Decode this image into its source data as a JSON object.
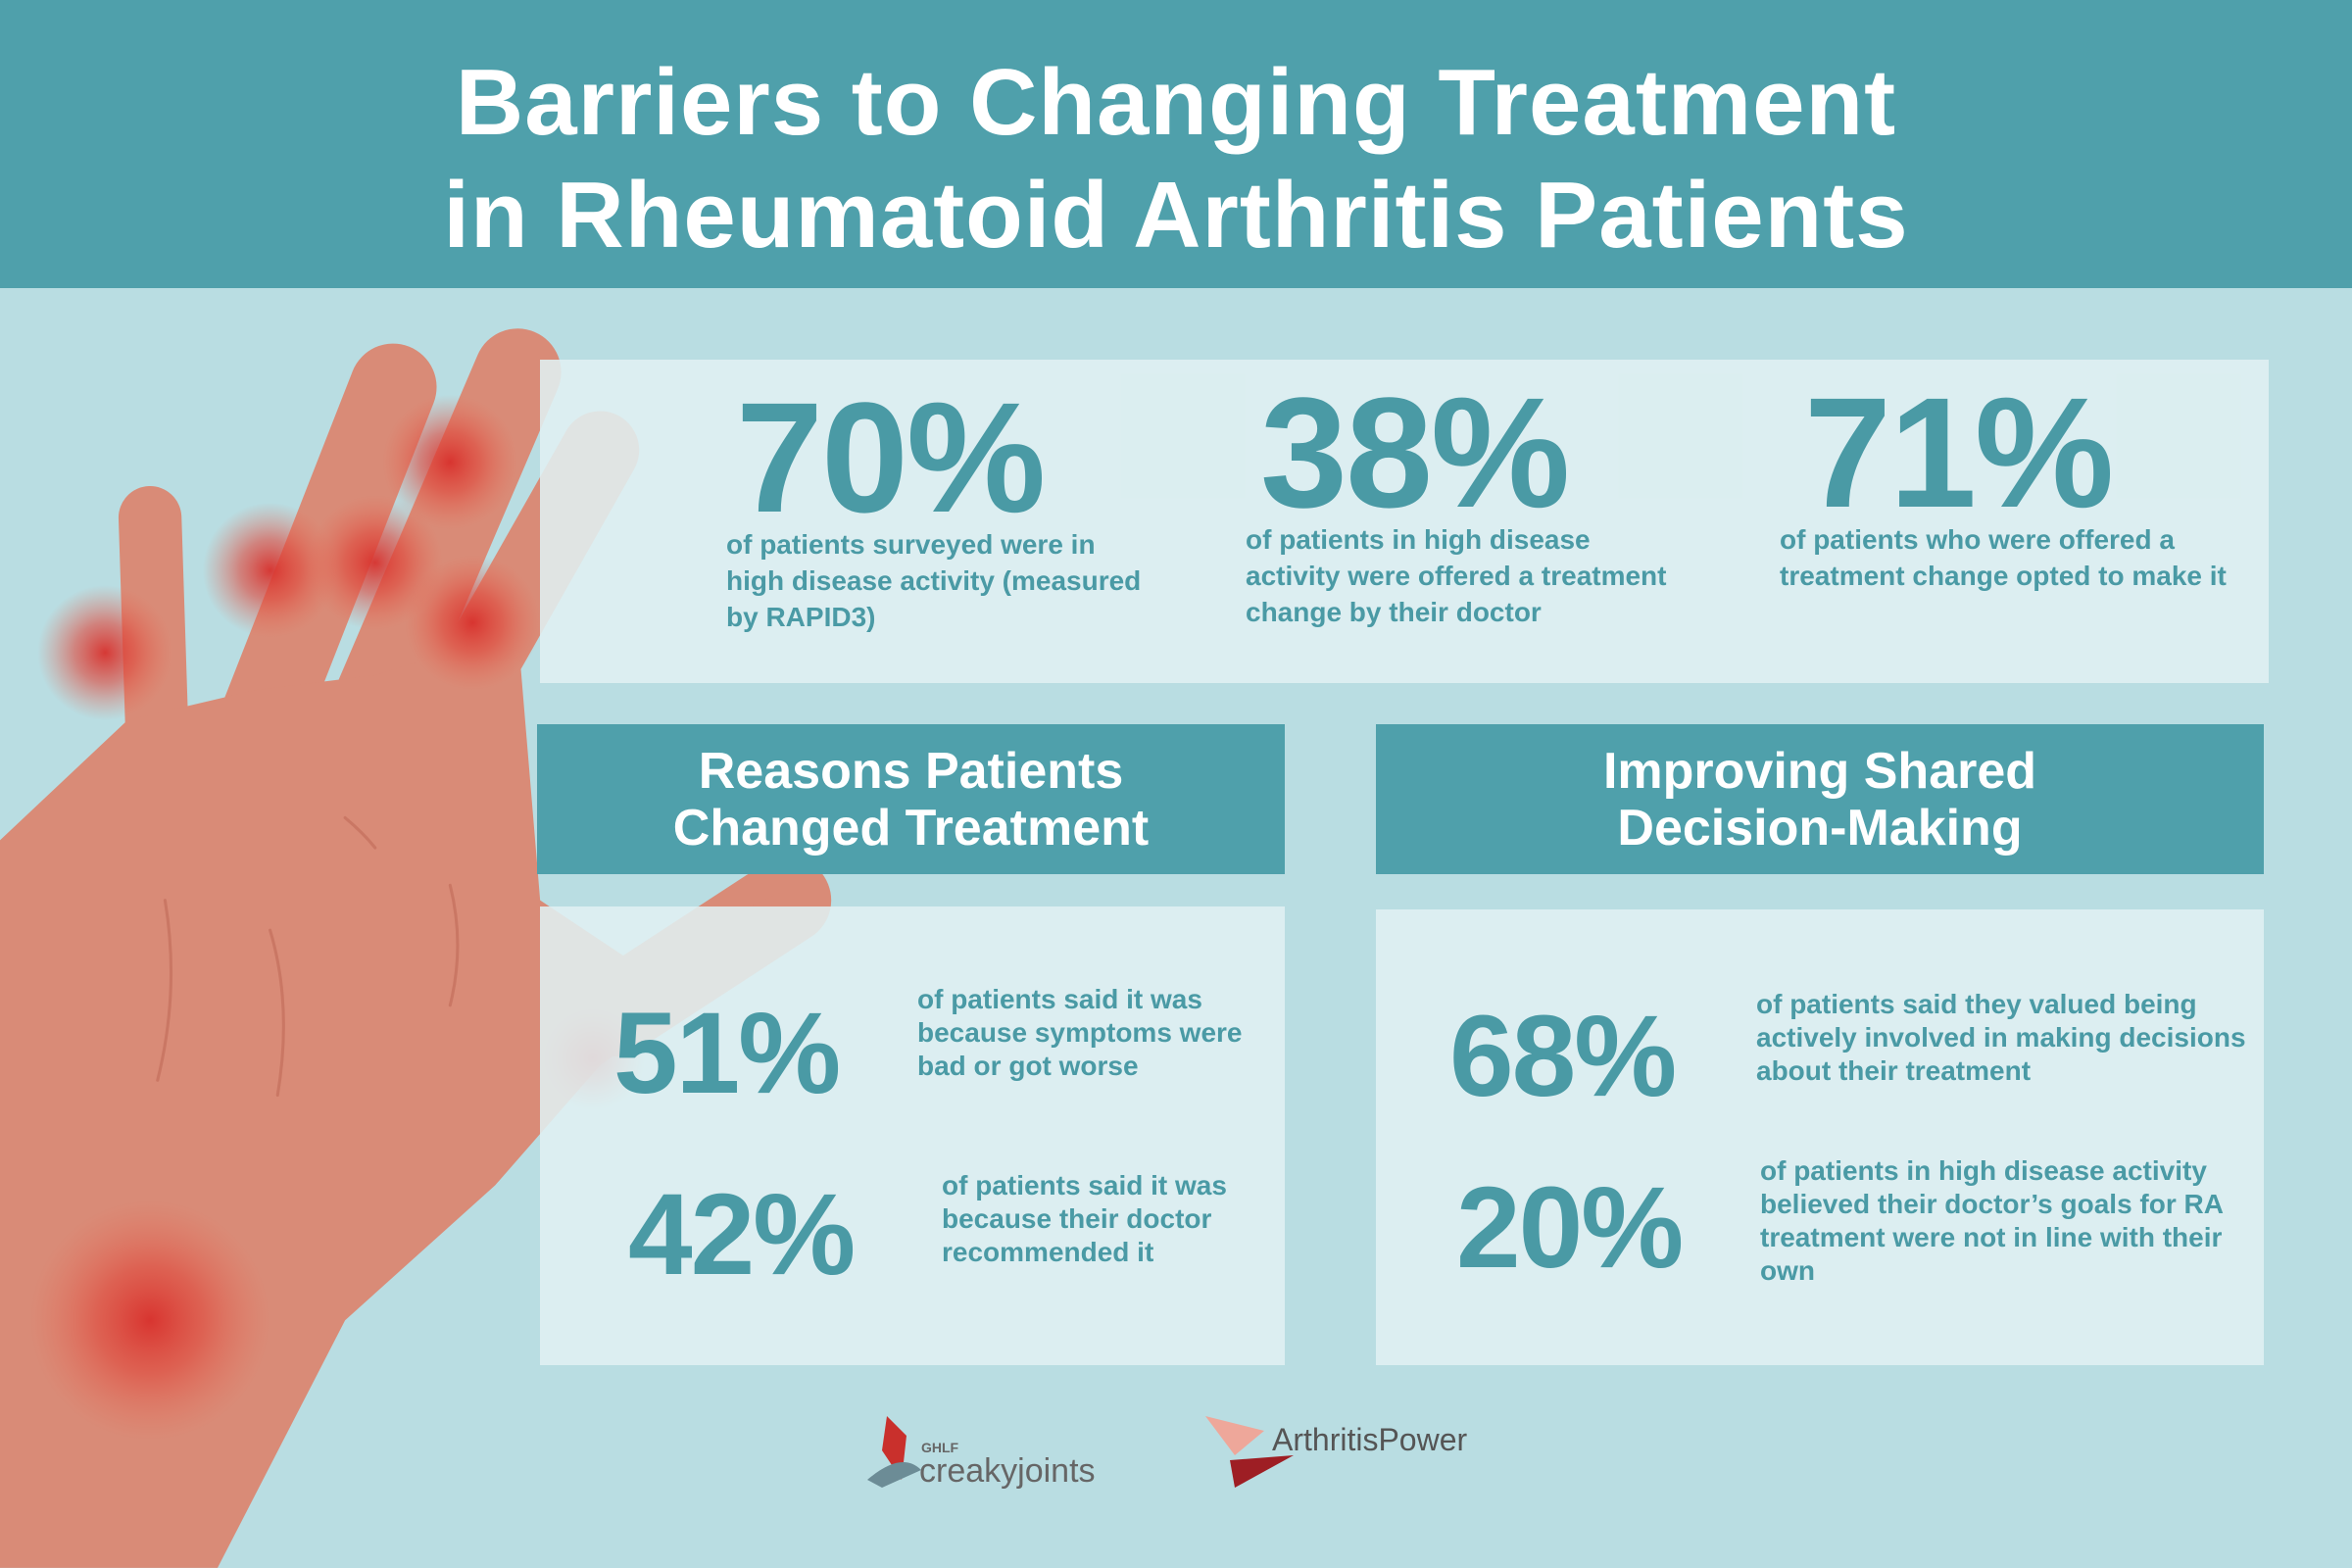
{
  "header": {
    "title_lines": [
      "Barriers to Changing Treatment",
      "in Rheumatoid Arthritis Patients"
    ]
  },
  "top_stats": [
    {
      "value": "70%",
      "text": "of patients surveyed were in high disease activity (measured by RAPID3)"
    },
    {
      "value": "38%",
      "text": "of patients in high disease activity were offered a treatment change by their doctor"
    },
    {
      "value": "71%",
      "text": "of patients who were offered a treatment change opted to make it"
    }
  ],
  "sections": [
    {
      "heading": "Reasons Patients Changed Treatment",
      "stats": [
        {
          "value": "51%",
          "text": "of patients said it was because symptoms were bad or got worse"
        },
        {
          "value": "42%",
          "text": "of patients said it was because their doctor recommended it"
        }
      ]
    },
    {
      "heading": "Improving Shared Decision-Making",
      "stats": [
        {
          "value": "68%",
          "text": "of patients said they valued being actively involved in making decisions about their treatment"
        },
        {
          "value": "20%",
          "text": "of patients in high disease activity believed their doctor’s goals for RA treatment were not in line with their own"
        }
      ]
    }
  ],
  "logos": {
    "ghlf": "GHLF",
    "creakyjoints": "creakyjoints",
    "arthritispower": "ArthritisPower"
  }
}
